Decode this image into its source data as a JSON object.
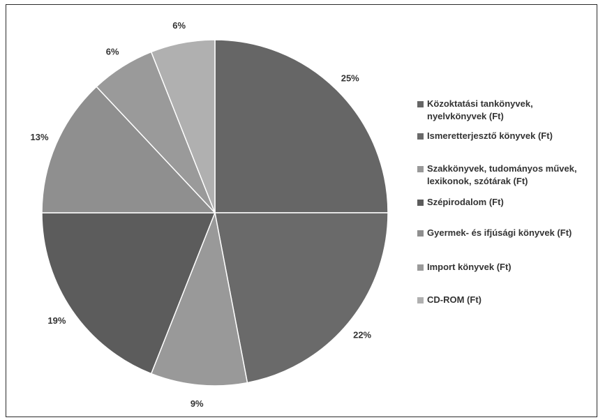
{
  "chart_data": {
    "type": "pie",
    "categories": [
      "Közoktatási tankönyvek, nyelvkönyvek (Ft)",
      "Ismeretterjesztő könyvek (Ft)",
      "Szakkönyvek, tudományos művek, lexikonok, szótárak (Ft)",
      "Szépirodalom  (Ft)",
      "Gyermek- és ifjúsági könyvek (Ft)",
      "Import könyvek (Ft)",
      "CD-ROM (Ft)"
    ],
    "values": [
      25,
      22,
      9,
      19,
      13,
      6,
      6
    ],
    "data_labels": [
      "25%",
      "22%",
      "9%",
      "19%",
      "13%",
      "6%",
      "6%"
    ],
    "colors": [
      "#666666",
      "#6a6a6a",
      "#999999",
      "#5c5c5c",
      "#8f8f8f",
      "#9a9a9a",
      "#b0b0b0"
    ],
    "legend_position": "right",
    "title": ""
  }
}
